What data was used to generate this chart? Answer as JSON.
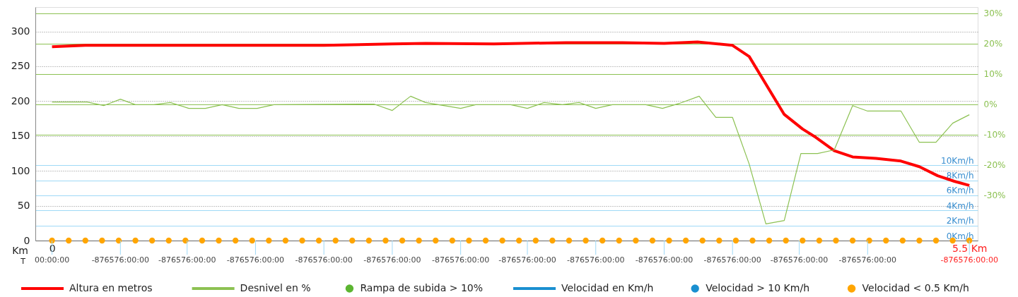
{
  "chart_data": {
    "type": "line",
    "xlabel": "Km",
    "xlim": [
      -0.1,
      5.55
    ],
    "xticks": [
      0,
      {
        "value": 5.5,
        "label": "5.5 Km"
      }
    ],
    "annotations": [
      "T",
      {
        "text": "00:00:00",
        "x": 0
      },
      {
        "text": "-876576:00:00",
        "x": 0.41
      },
      {
        "text": "-876576:00:00",
        "x": 0.81
      },
      {
        "text": "-876576:00:00",
        "x": 1.22
      },
      {
        "text": "-876576:00:00",
        "x": 1.63
      },
      {
        "text": "-876576:00:00",
        "x": 2.04
      },
      {
        "text": "-876576:00:00",
        "x": 2.45
      },
      {
        "text": "-876576:00:00",
        "x": 2.85
      },
      {
        "text": "-876576:00:00",
        "x": 3.26
      },
      {
        "text": "-876576:00:00",
        "x": 3.67
      },
      {
        "text": "-876576:00:00",
        "x": 4.08
      },
      {
        "text": "-876576:00:00",
        "x": 4.48
      },
      {
        "text": "-876576:00:00",
        "x": 4.89
      },
      {
        "text": "-876576:00:00",
        "x": 5.5
      }
    ],
    "ylim": [
      0,
      335
    ],
    "yticks": [
      0,
      50,
      100,
      150,
      200,
      250,
      300
    ],
    "y2lim": [
      -45,
      32
    ],
    "y2ticks": [
      {
        "value": -30,
        "label": "-30%"
      },
      {
        "value": -20,
        "label": "-20%"
      },
      {
        "value": -10,
        "label": "-10%"
      },
      {
        "value": 0,
        "label": "0%"
      },
      {
        "value": 10,
        "label": "10%"
      },
      {
        "value": 20,
        "label": "20%"
      },
      {
        "value": 30,
        "label": "30%"
      }
    ],
    "y3lim": [
      0,
      31
    ],
    "y3ticks": [
      {
        "value": 0,
        "label": "0Km/h"
      },
      {
        "value": 2,
        "label": "2Km/h"
      },
      {
        "value": 4,
        "label": "4Km/h"
      },
      {
        "value": 6,
        "label": "6Km/h"
      },
      {
        "value": 8,
        "label": "8Km/h"
      },
      {
        "value": 10,
        "label": "10Km/h"
      }
    ],
    "grid": true,
    "legend": "bottom",
    "series": [
      {
        "name": "Altura en metros",
        "color": "#ff0000",
        "x": [
          0,
          0.2,
          0.41,
          0.81,
          1.22,
          1.63,
          2.04,
          2.24,
          2.65,
          3.08,
          3.42,
          3.67,
          3.87,
          4.08,
          4.18,
          4.39,
          4.5,
          4.58,
          4.69,
          4.8,
          4.94,
          5.09,
          5.2,
          5.31,
          5.41,
          5.5
        ],
        "values": [
          278,
          280,
          280,
          280,
          280,
          280,
          282,
          283,
          282,
          284,
          284,
          283,
          285,
          280,
          264,
          181,
          160,
          148,
          129,
          120,
          118,
          114,
          106,
          93,
          85,
          79
        ]
      },
      {
        "name": "Desnivel en %",
        "axis": "y2",
        "color": "#8cc152",
        "x": [
          0,
          0.21,
          0.31,
          0.41,
          0.5,
          0.61,
          0.71,
          0.82,
          0.92,
          1.02,
          1.12,
          1.23,
          1.33,
          1.93,
          2.04,
          2.15,
          2.24,
          2.45,
          2.54,
          2.75,
          2.85,
          2.95,
          3.06,
          3.16,
          3.26,
          3.36,
          3.56,
          3.66,
          3.76,
          3.88,
          3.98,
          4.08,
          4.18,
          4.28,
          4.39,
          4.49,
          4.59,
          4.69,
          4.8,
          4.89,
          5.09,
          5.2,
          5.3,
          5.4,
          5.5
        ],
        "values": [
          0.7,
          0.7,
          -0.5,
          1.6,
          -0.2,
          -0.2,
          0.5,
          -1.4,
          -1.4,
          -0.2,
          -1.4,
          -1.4,
          -0.2,
          0,
          -2.1,
          2.6,
          0.5,
          -1.4,
          -0.2,
          -0.2,
          -1.4,
          0.5,
          -0.2,
          0.5,
          -1.4,
          -0.2,
          -0.2,
          -1.4,
          0.2,
          2.6,
          -4.4,
          -4.4,
          -19.8,
          -39.5,
          -38.4,
          -16.3,
          -16.3,
          -15.1,
          -0.5,
          -2.3,
          -2.3,
          -12.6,
          -12.6,
          -6.3,
          -3.5
        ]
      },
      {
        "name": "Rampa de subida > 10%",
        "type": "scatter",
        "axis": "y2",
        "marker": "circle",
        "color": "#5cb531"
      },
      {
        "name": "Velocidad en Km/h",
        "axis": "y3",
        "color": "#1a8fd0"
      },
      {
        "name": "Velocidad > 10 Km/h",
        "type": "scatter",
        "axis": "y3",
        "marker": "circle",
        "color": "#1a8fd0"
      },
      {
        "name": "Velocidad < 0.5 Km/h",
        "type": "scatter",
        "axis": "y3",
        "marker": "circle",
        "color": "#ffa500",
        "x": [
          0,
          0.1,
          0.2,
          0.3,
          0.4,
          0.5,
          0.6,
          0.7,
          0.8,
          0.9,
          1.0,
          1.1,
          1.2,
          1.3,
          1.4,
          1.5,
          1.6,
          1.7,
          1.8,
          1.9,
          2.0,
          2.1,
          2.2,
          2.3,
          2.4,
          2.5,
          2.6,
          2.7,
          2.8,
          2.9,
          3.0,
          3.1,
          3.2,
          3.3,
          3.4,
          3.5,
          3.6,
          3.7,
          3.8,
          3.9,
          4.0,
          4.1,
          4.2,
          4.3,
          4.4,
          4.5,
          4.6,
          4.7,
          4.8,
          4.9,
          5.0,
          5.1,
          5.2,
          5.3,
          5.4,
          5.5
        ],
        "values": [
          0,
          0,
          0,
          0,
          0,
          0,
          0,
          0,
          0,
          0,
          0,
          0,
          0,
          0,
          0,
          0,
          0,
          0,
          0,
          0,
          0,
          0,
          0,
          0,
          0,
          0,
          0,
          0,
          0,
          0,
          0,
          0,
          0,
          0,
          0,
          0,
          0,
          0,
          0,
          0,
          0,
          0,
          0,
          0,
          0,
          0,
          0,
          0,
          0,
          0,
          0,
          0,
          0,
          0,
          0,
          0
        ]
      }
    ]
  }
}
